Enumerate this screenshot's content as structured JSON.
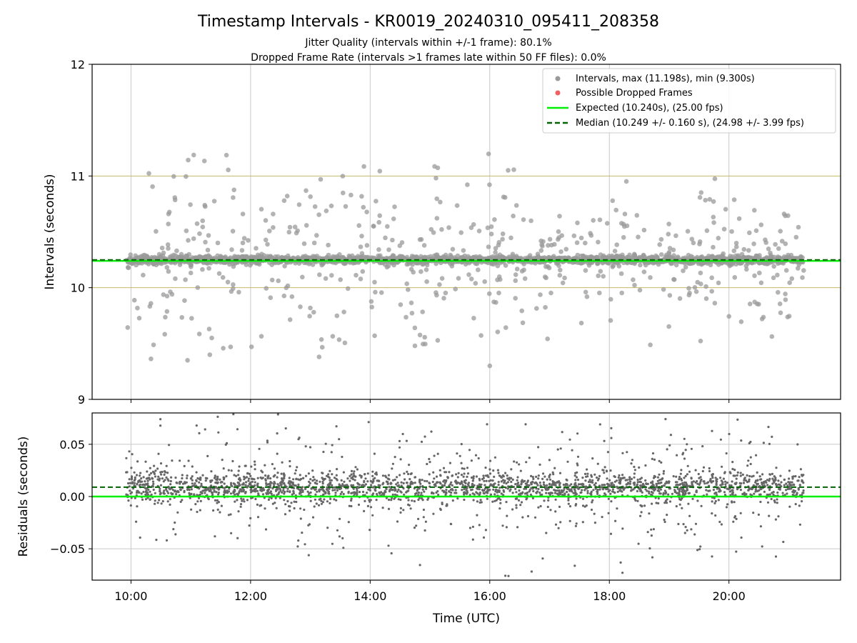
{
  "chart_data": [
    {
      "type": "scatter",
      "title": "Timestamp Intervals - KR0019_20240310_095411_208358",
      "subtitle_lines": [
        "Jitter Quality (intervals within +/-1 frame): 80.1%",
        "Dropped Frame Rate (intervals >1 frames late within 50 FF files): 0.0%"
      ],
      "xlabel": "",
      "ylabel": "Intervals (seconds)",
      "ylim": [
        9,
        12
      ],
      "yticks": [
        9,
        10,
        11,
        12
      ],
      "xlim": [
        "09:21",
        "21:52"
      ],
      "legend_position": "upper right",
      "grid": "vertical",
      "reference_lines": [
        {
          "y": 10,
          "color": "#c8b864"
        },
        {
          "y": 11,
          "color": "#c8b864"
        }
      ],
      "series": [
        {
          "name": "Intervals, max (11.198s), min (9.300s)",
          "kind": "scatter",
          "color": "#9a9a9a",
          "x_range": [
            "09:55",
            "21:15"
          ],
          "y_min": 9.3,
          "y_max": 11.198,
          "center": 10.249,
          "spread": 0.16
        },
        {
          "name": "Possible Dropped Frames",
          "kind": "scatter",
          "color": "#f06060",
          "values": []
        },
        {
          "name": "Expected (10.240s), (25.00 fps)",
          "kind": "hline",
          "y": 10.24,
          "color": "#00ee00",
          "dash": "solid"
        },
        {
          "name": "Median (10.249 +/- 0.160 s), (24.98 +/- 3.99 fps)",
          "kind": "hline",
          "y": 10.249,
          "color": "#006400",
          "dash": "dashed"
        }
      ]
    },
    {
      "type": "scatter",
      "title": "",
      "xlabel": "Time (UTC)",
      "ylabel": "Residuals (seconds)",
      "ylim": [
        -0.08,
        0.08
      ],
      "yticks": [
        -0.05,
        0.0,
        0.05
      ],
      "ytick_labels": [
        "−0.05",
        "0.00",
        "0.05"
      ],
      "xlim": [
        "09:21",
        "21:52"
      ],
      "xticks": [
        "10:00",
        "12:00",
        "14:00",
        "16:00",
        "18:00",
        "20:00"
      ],
      "grid": "both",
      "series": [
        {
          "kind": "scatter",
          "color": "#666666",
          "x_range": [
            "09:55",
            "21:15"
          ],
          "center": 0.009,
          "y_min": -0.08,
          "y_max": 0.08
        },
        {
          "kind": "hline",
          "y": 0.0,
          "color": "#00ee00",
          "dash": "solid"
        },
        {
          "kind": "hline",
          "y": 0.009,
          "color": "#006400",
          "dash": "dashed"
        }
      ]
    }
  ]
}
